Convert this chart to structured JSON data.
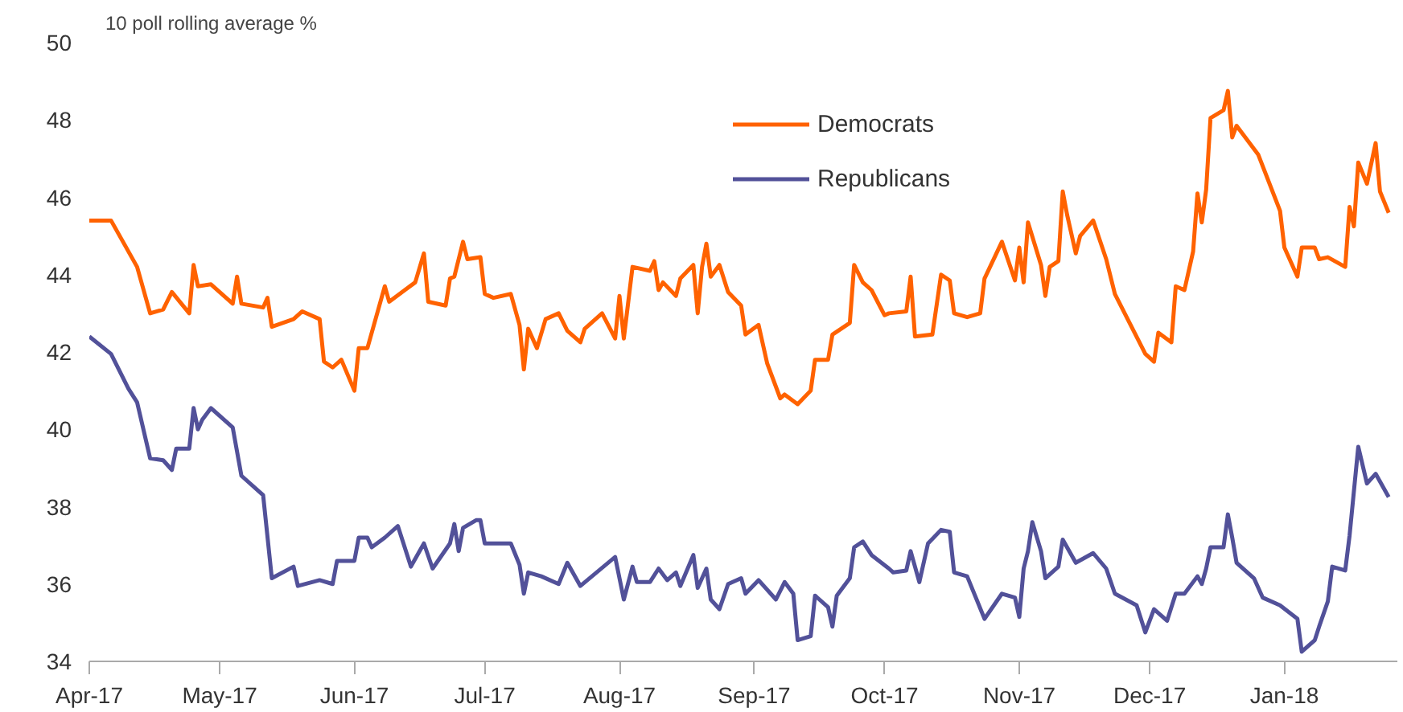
{
  "chart_data": {
    "type": "line",
    "title": "10 poll rolling average %",
    "xlim": [
      "2017-04-01",
      "2018-01-27"
    ],
    "xticks": [
      {
        "value": "2017-04-01",
        "label": "Apr-17"
      },
      {
        "value": "2017-05-01",
        "label": "May-17"
      },
      {
        "value": "2017-06-01",
        "label": "Jun-17"
      },
      {
        "value": "2017-07-01",
        "label": "Jul-17"
      },
      {
        "value": "2017-08-01",
        "label": "Aug-17"
      },
      {
        "value": "2017-09-01",
        "label": "Sep-17"
      },
      {
        "value": "2017-10-01",
        "label": "Oct-17"
      },
      {
        "value": "2017-11-01",
        "label": "Nov-17"
      },
      {
        "value": "2017-12-01",
        "label": "Dec-17"
      },
      {
        "value": "2018-01-01",
        "label": "Jan-18"
      }
    ],
    "ylim": [
      34,
      50
    ],
    "yticks": [
      34,
      36,
      38,
      40,
      42,
      44,
      46,
      48,
      50
    ],
    "grid": false,
    "legend": "top",
    "line_style": "solid",
    "marker": "none",
    "series": [
      {
        "name": "Democrats",
        "color": "#ff6200",
        "x": [
          "2017-04-01",
          "2017-04-06",
          "2017-04-12",
          "2017-04-15",
          "2017-04-18",
          "2017-04-20",
          "2017-04-24",
          "2017-04-25",
          "2017-04-26",
          "2017-04-29",
          "2017-05-04",
          "2017-05-05",
          "2017-05-06",
          "2017-05-11",
          "2017-05-12",
          "2017-05-13",
          "2017-05-18",
          "2017-05-20",
          "2017-05-24",
          "2017-05-25",
          "2017-05-27",
          "2017-05-29",
          "2017-06-01",
          "2017-06-02",
          "2017-06-04",
          "2017-06-08",
          "2017-06-09",
          "2017-06-15",
          "2017-06-17",
          "2017-06-18",
          "2017-06-22",
          "2017-06-23",
          "2017-06-24",
          "2017-06-26",
          "2017-06-27",
          "2017-06-30",
          "2017-07-01",
          "2017-07-03",
          "2017-07-07",
          "2017-07-09",
          "2017-07-10",
          "2017-07-11",
          "2017-07-13",
          "2017-07-15",
          "2017-07-18",
          "2017-07-20",
          "2017-07-23",
          "2017-07-24",
          "2017-07-28",
          "2017-07-31",
          "2017-08-01",
          "2017-08-02",
          "2017-08-04",
          "2017-08-08",
          "2017-08-09",
          "2017-08-10",
          "2017-08-11",
          "2017-08-14",
          "2017-08-15",
          "2017-08-18",
          "2017-08-19",
          "2017-08-20",
          "2017-08-21",
          "2017-08-22",
          "2017-08-24",
          "2017-08-26",
          "2017-08-29",
          "2017-08-30",
          "2017-09-02",
          "2017-09-04",
          "2017-09-07",
          "2017-09-08",
          "2017-09-11",
          "2017-09-14",
          "2017-09-15",
          "2017-09-18",
          "2017-09-19",
          "2017-09-23",
          "2017-09-24",
          "2017-09-26",
          "2017-09-28",
          "2017-10-01",
          "2017-10-02",
          "2017-10-06",
          "2017-10-07",
          "2017-10-08",
          "2017-10-12",
          "2017-10-14",
          "2017-10-16",
          "2017-10-17",
          "2017-10-20",
          "2017-10-23",
          "2017-10-24",
          "2017-10-28",
          "2017-10-31",
          "2017-11-01",
          "2017-11-02",
          "2017-11-03",
          "2017-11-06",
          "2017-11-07",
          "2017-11-08",
          "2017-11-10",
          "2017-11-11",
          "2017-11-12",
          "2017-11-14",
          "2017-11-15",
          "2017-11-18",
          "2017-11-21",
          "2017-11-23",
          "2017-11-30",
          "2017-12-02",
          "2017-12-03",
          "2017-12-06",
          "2017-12-07",
          "2017-12-09",
          "2017-12-11",
          "2017-12-12",
          "2017-12-13",
          "2017-12-14",
          "2017-12-15",
          "2017-12-18",
          "2017-12-19",
          "2017-12-20",
          "2017-12-21",
          "2017-12-26",
          "2017-12-31",
          "2018-01-01",
          "2018-01-04",
          "2018-01-05",
          "2018-01-08",
          "2018-01-09",
          "2018-01-11",
          "2018-01-15",
          "2018-01-16",
          "2018-01-17",
          "2018-01-18",
          "2018-01-20",
          "2018-01-22",
          "2018-01-23",
          "2018-01-25"
        ],
        "values": [
          45.4,
          45.4,
          44.2,
          43.0,
          43.1,
          43.55,
          43.0,
          44.25,
          43.7,
          43.75,
          43.25,
          43.95,
          43.25,
          43.15,
          43.4,
          42.65,
          42.85,
          43.05,
          42.85,
          41.75,
          41.6,
          41.8,
          41.0,
          42.1,
          42.1,
          43.7,
          43.3,
          43.8,
          44.55,
          43.3,
          43.2,
          43.9,
          43.95,
          44.85,
          44.4,
          44.45,
          43.5,
          43.4,
          43.5,
          42.7,
          41.55,
          42.6,
          42.1,
          42.85,
          43.0,
          42.55,
          42.25,
          42.6,
          43.0,
          42.35,
          43.45,
          42.35,
          44.2,
          44.1,
          44.35,
          43.6,
          43.8,
          43.45,
          43.9,
          44.25,
          43.0,
          44.2,
          44.8,
          43.95,
          44.25,
          43.55,
          43.2,
          42.45,
          42.7,
          41.7,
          40.8,
          40.9,
          40.65,
          41.0,
          41.8,
          41.8,
          42.45,
          42.75,
          44.25,
          43.8,
          43.6,
          42.95,
          43.0,
          43.05,
          43.95,
          42.4,
          42.45,
          44.0,
          43.85,
          43.0,
          42.9,
          43.0,
          43.9,
          44.85,
          43.85,
          44.7,
          43.8,
          45.35,
          44.25,
          43.45,
          44.2,
          44.35,
          46.15,
          45.55,
          44.55,
          45.0,
          45.4,
          44.4,
          43.5,
          41.95,
          41.75,
          42.5,
          42.25,
          43.7,
          43.6,
          44.6,
          46.1,
          45.35,
          46.2,
          48.05,
          48.25,
          48.75,
          47.55,
          47.85,
          47.1,
          45.65,
          44.7,
          43.95,
          44.7,
          44.7,
          44.4,
          44.45,
          44.2,
          45.75,
          45.25,
          46.9,
          46.35,
          47.4,
          46.15,
          45.6
        ]
      },
      {
        "name": "Republicans",
        "color": "#525199",
        "x": [
          "2017-04-01",
          "2017-04-06",
          "2017-04-10",
          "2017-04-12",
          "2017-04-15",
          "2017-04-18",
          "2017-04-20",
          "2017-04-21",
          "2017-04-24",
          "2017-04-25",
          "2017-04-26",
          "2017-04-27",
          "2017-04-29",
          "2017-05-04",
          "2017-05-06",
          "2017-05-11",
          "2017-05-13",
          "2017-05-18",
          "2017-05-19",
          "2017-05-24",
          "2017-05-27",
          "2017-05-28",
          "2017-06-01",
          "2017-06-02",
          "2017-06-04",
          "2017-06-05",
          "2017-06-08",
          "2017-06-11",
          "2017-06-14",
          "2017-06-17",
          "2017-06-19",
          "2017-06-23",
          "2017-06-24",
          "2017-06-25",
          "2017-06-26",
          "2017-06-29",
          "2017-06-30",
          "2017-07-01",
          "2017-07-07",
          "2017-07-09",
          "2017-07-10",
          "2017-07-11",
          "2017-07-14",
          "2017-07-18",
          "2017-07-20",
          "2017-07-23",
          "2017-07-31",
          "2017-08-02",
          "2017-08-04",
          "2017-08-05",
          "2017-08-08",
          "2017-08-10",
          "2017-08-12",
          "2017-08-14",
          "2017-08-15",
          "2017-08-18",
          "2017-08-19",
          "2017-08-21",
          "2017-08-22",
          "2017-08-24",
          "2017-08-26",
          "2017-08-29",
          "2017-08-30",
          "2017-09-02",
          "2017-09-06",
          "2017-09-08",
          "2017-09-10",
          "2017-09-11",
          "2017-09-14",
          "2017-09-15",
          "2017-09-18",
          "2017-09-19",
          "2017-09-20",
          "2017-09-23",
          "2017-09-24",
          "2017-09-26",
          "2017-09-28",
          "2017-10-02",
          "2017-10-03",
          "2017-10-06",
          "2017-10-07",
          "2017-10-09",
          "2017-10-11",
          "2017-10-14",
          "2017-10-16",
          "2017-10-17",
          "2017-10-20",
          "2017-10-24",
          "2017-10-28",
          "2017-10-31",
          "2017-11-01",
          "2017-11-02",
          "2017-11-03",
          "2017-11-04",
          "2017-11-06",
          "2017-11-07",
          "2017-11-10",
          "2017-11-11",
          "2017-11-14",
          "2017-11-18",
          "2017-11-21",
          "2017-11-23",
          "2017-11-28",
          "2017-11-30",
          "2017-12-02",
          "2017-12-05",
          "2017-12-07",
          "2017-12-09",
          "2017-12-12",
          "2017-12-13",
          "2017-12-14",
          "2017-12-15",
          "2017-12-18",
          "2017-12-19",
          "2017-12-20",
          "2017-12-21",
          "2017-12-25",
          "2017-12-27",
          "2017-12-31",
          "2018-01-04",
          "2018-01-05",
          "2018-01-08",
          "2018-01-09",
          "2018-01-11",
          "2018-01-12",
          "2018-01-15",
          "2018-01-16",
          "2018-01-18",
          "2018-01-20",
          "2018-01-22",
          "2018-01-25"
        ],
        "values": [
          42.4,
          41.95,
          41.05,
          40.7,
          39.25,
          39.2,
          38.95,
          39.5,
          39.5,
          40.55,
          40.0,
          40.25,
          40.55,
          40.05,
          38.8,
          38.3,
          36.15,
          36.45,
          35.95,
          36.1,
          36.0,
          36.6,
          36.6,
          37.2,
          37.2,
          36.95,
          37.2,
          37.5,
          36.45,
          37.05,
          36.4,
          37.05,
          37.55,
          36.85,
          37.45,
          37.65,
          37.65,
          37.05,
          37.05,
          36.5,
          35.75,
          36.3,
          36.2,
          36.0,
          36.55,
          35.95,
          36.7,
          35.6,
          36.45,
          36.05,
          36.05,
          36.4,
          36.1,
          36.3,
          35.95,
          36.75,
          35.9,
          36.4,
          35.6,
          35.35,
          36.0,
          36.15,
          35.75,
          36.1,
          35.6,
          36.05,
          35.75,
          34.55,
          34.65,
          35.7,
          35.4,
          34.9,
          35.7,
          36.15,
          36.95,
          37.1,
          36.75,
          36.4,
          36.3,
          36.35,
          36.85,
          36.05,
          37.05,
          37.4,
          37.35,
          36.3,
          36.2,
          35.1,
          35.75,
          35.65,
          35.15,
          36.4,
          36.85,
          37.6,
          36.85,
          36.15,
          36.45,
          37.15,
          36.55,
          36.8,
          36.4,
          35.75,
          35.45,
          34.75,
          35.35,
          35.05,
          35.75,
          35.75,
          36.2,
          36.0,
          36.4,
          36.95,
          36.95,
          37.8,
          37.2,
          36.55,
          36.15,
          35.65,
          35.45,
          35.1,
          34.25,
          34.55,
          34.9,
          35.55,
          36.45,
          36.35,
          37.25,
          39.55,
          38.6,
          38.85,
          38.25
        ]
      }
    ]
  }
}
